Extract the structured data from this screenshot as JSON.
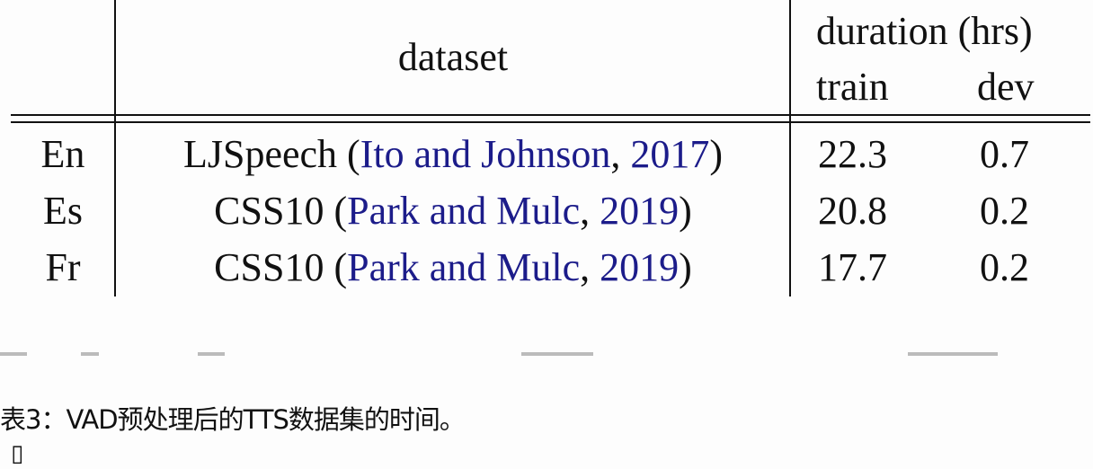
{
  "table": {
    "header": {
      "dataset": "dataset",
      "duration": "duration (hrs)",
      "train": "train",
      "dev": "dev"
    },
    "rows": [
      {
        "lang": "En",
        "dataset": "LJSpeech",
        "cite_authors": "Ito and Johnson",
        "cite_year": "2017",
        "train": "22.3",
        "dev": "0.7"
      },
      {
        "lang": "Es",
        "dataset": "CSS10",
        "cite_authors": "Park and Mulc",
        "cite_year": "2019",
        "train": "20.8",
        "dev": "0.2"
      },
      {
        "lang": "Fr",
        "dataset": "CSS10",
        "cite_authors": "Park and Mulc",
        "cite_year": "2019",
        "train": "17.7",
        "dev": "0.2"
      }
    ],
    "citation_color": "#1c1c8a"
  },
  "caption": "表3：VAD预处理后的TTS数据集的时间。",
  "trailing_glyph": "▯"
}
